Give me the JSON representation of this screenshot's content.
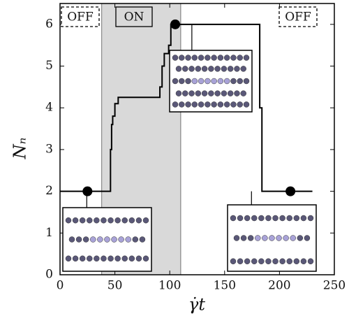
{
  "chart_data": {
    "type": "line",
    "x_label": "γ̇t",
    "y_label": "Nₙ",
    "xlim": [
      0,
      250
    ],
    "ylim": [
      0,
      6.5
    ],
    "xticks": [
      0,
      50,
      100,
      150,
      200,
      250
    ],
    "yticks": [
      0,
      1,
      2,
      3,
      4,
      5,
      6
    ],
    "shade": [
      38,
      110
    ],
    "shade_color": "#d9d9d9",
    "annotations": [
      "OFF",
      "ON",
      "OFF"
    ],
    "series": [
      {
        "color": "#000000",
        "x": [
          0,
          46,
          46,
          47,
          47,
          48,
          48,
          50,
          50,
          53,
          53,
          91,
          91,
          93,
          93,
          95,
          95,
          99,
          99,
          101,
          101,
          182,
          182,
          184,
          184,
          230
        ],
        "values": [
          2,
          2,
          3,
          3,
          3.6,
          3.6,
          3.8,
          3.8,
          4.1,
          4.1,
          4.25,
          4.25,
          4.5,
          4.5,
          5,
          5,
          5.3,
          5.3,
          5.5,
          5.5,
          6,
          6,
          4,
          4,
          2,
          2
        ]
      },
      {
        "color": "#000000",
        "x": [
          25,
          105,
          210
        ],
        "values": [
          2,
          6,
          2
        ]
      }
    ]
  }
}
